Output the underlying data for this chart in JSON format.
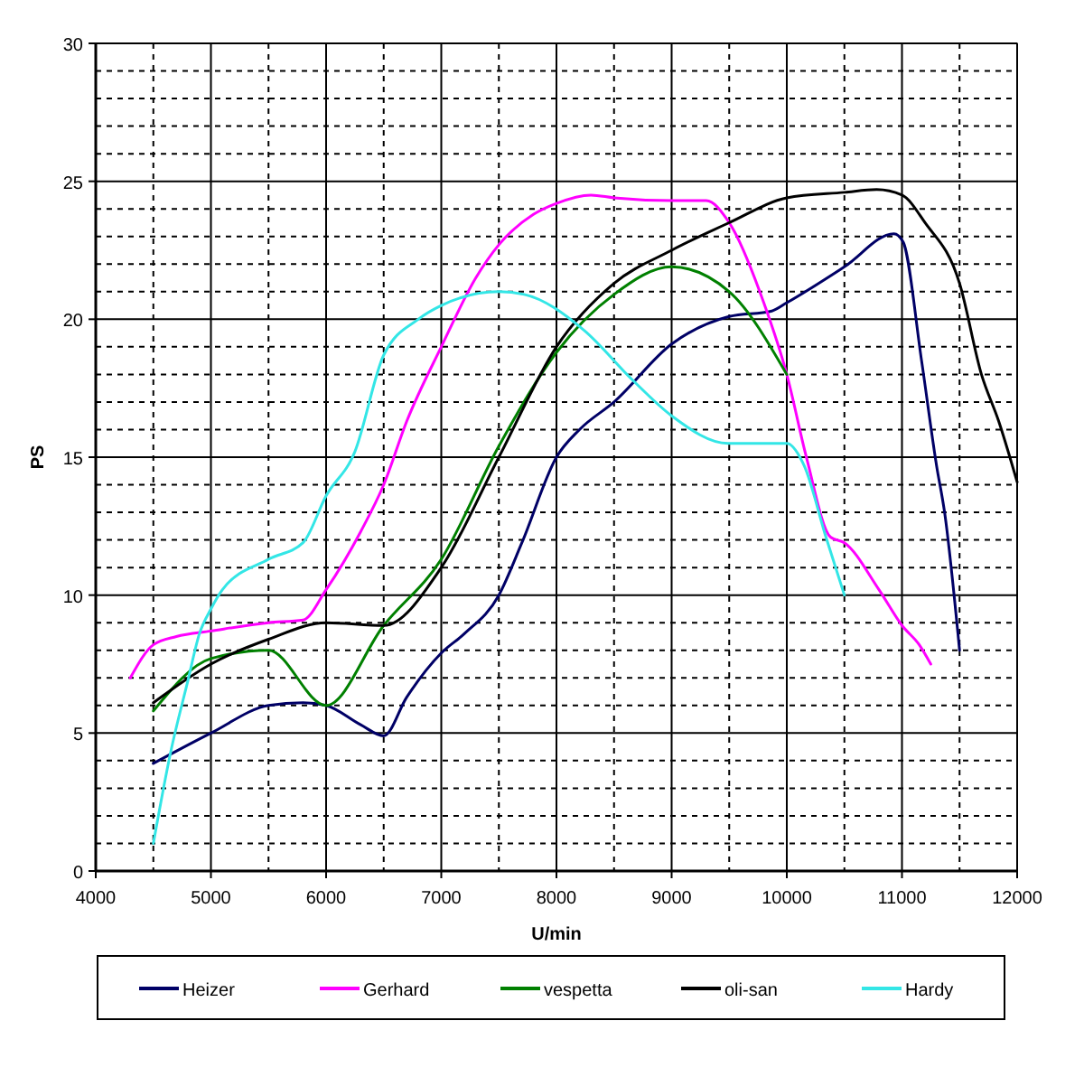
{
  "chart_data": {
    "type": "line",
    "xlabel": "U/min",
    "ylabel": "PS",
    "xlim": [
      4000,
      12000
    ],
    "xticks": [
      4000,
      5000,
      6000,
      7000,
      8000,
      9000,
      10000,
      11000,
      12000
    ],
    "ylim": [
      0,
      30
    ],
    "yticks": [
      0,
      5,
      10,
      15,
      20,
      25,
      30
    ],
    "grid": true,
    "legend": "bottom",
    "series": [
      {
        "name": "Heizer",
        "color": "#000066",
        "x": [
          4500,
          5000,
          5500,
          5800,
          6000,
          6300,
          6500,
          6700,
          7000,
          7200,
          7500,
          7700,
          8000,
          8200,
          8500,
          9000,
          9500,
          9870,
          10000,
          10500,
          10930,
          11010,
          11170,
          11300,
          11370,
          11500
        ],
        "values": [
          3.9,
          5.0,
          6.0,
          6.1,
          6.0,
          5.3,
          4.9,
          6.3,
          7.9,
          8.6,
          10.0,
          11.9,
          15.0,
          16.0,
          17.0,
          19.1,
          20.1,
          20.3,
          20.6,
          21.9,
          23.1,
          22.8,
          18.5,
          14.7,
          13.0,
          8.0
        ]
      },
      {
        "name": "Gerhard",
        "color": "#ff00ff",
        "x": [
          4300,
          4500,
          4700,
          5000,
          5500,
          5800,
          6000,
          6300,
          6500,
          6700,
          7000,
          7300,
          7500,
          7800,
          8000,
          8300,
          8500,
          9000,
          9300,
          9500,
          9800,
          10000,
          10170,
          10380,
          10500,
          10800,
          11000,
          11150,
          11250
        ],
        "values": [
          7.0,
          8.2,
          8.5,
          8.7,
          9.0,
          9.1,
          10.2,
          12.3,
          14.0,
          16.3,
          19.0,
          21.5,
          22.7,
          23.8,
          24.2,
          24.5,
          24.4,
          24.3,
          24.3,
          23.5,
          20.6,
          18.0,
          15.0,
          12.1,
          11.9,
          10.2,
          8.9,
          8.2,
          7.5
        ]
      },
      {
        "name": "vespetta",
        "color": "#008000",
        "x": [
          4500,
          5000,
          5500,
          6000,
          6500,
          7000,
          7500,
          8000,
          8500,
          9000,
          9500,
          10000
        ],
        "values": [
          5.8,
          7.7,
          8.0,
          6.0,
          8.9,
          11.3,
          15.4,
          18.8,
          20.9,
          21.9,
          21.0,
          18.0
        ]
      },
      {
        "name": "oli-san",
        "color": "#000000",
        "x": [
          4500,
          5000,
          5500,
          6000,
          6500,
          7000,
          7500,
          8000,
          8500,
          9000,
          9500,
          10000,
          10500,
          10780,
          11000,
          11200,
          11500,
          11690,
          11840,
          12000
        ],
        "values": [
          6.1,
          7.5,
          8.4,
          9.0,
          8.9,
          11.0,
          15.0,
          19.0,
          21.3,
          22.5,
          23.5,
          24.4,
          24.6,
          24.7,
          24.5,
          23.5,
          21.3,
          18.0,
          16.3,
          14.1
        ]
      },
      {
        "name": "Hardy",
        "color": "#33e6e6",
        "x": [
          4500,
          4650,
          4800,
          4900,
          5000,
          5100,
          5500,
          5800,
          6000,
          6250,
          6500,
          6800,
          7000,
          7500,
          7720,
          8240,
          8660,
          9000,
          9490,
          10000,
          10150,
          10340,
          10500
        ],
        "values": [
          1.0,
          4.3,
          6.9,
          8.6,
          9.5,
          10.2,
          11.3,
          11.9,
          13.6,
          15.2,
          18.7,
          20.0,
          20.5,
          21.0,
          20.9,
          19.6,
          17.8,
          16.5,
          15.5,
          15.5,
          14.7,
          12.1,
          10.0
        ]
      }
    ]
  }
}
